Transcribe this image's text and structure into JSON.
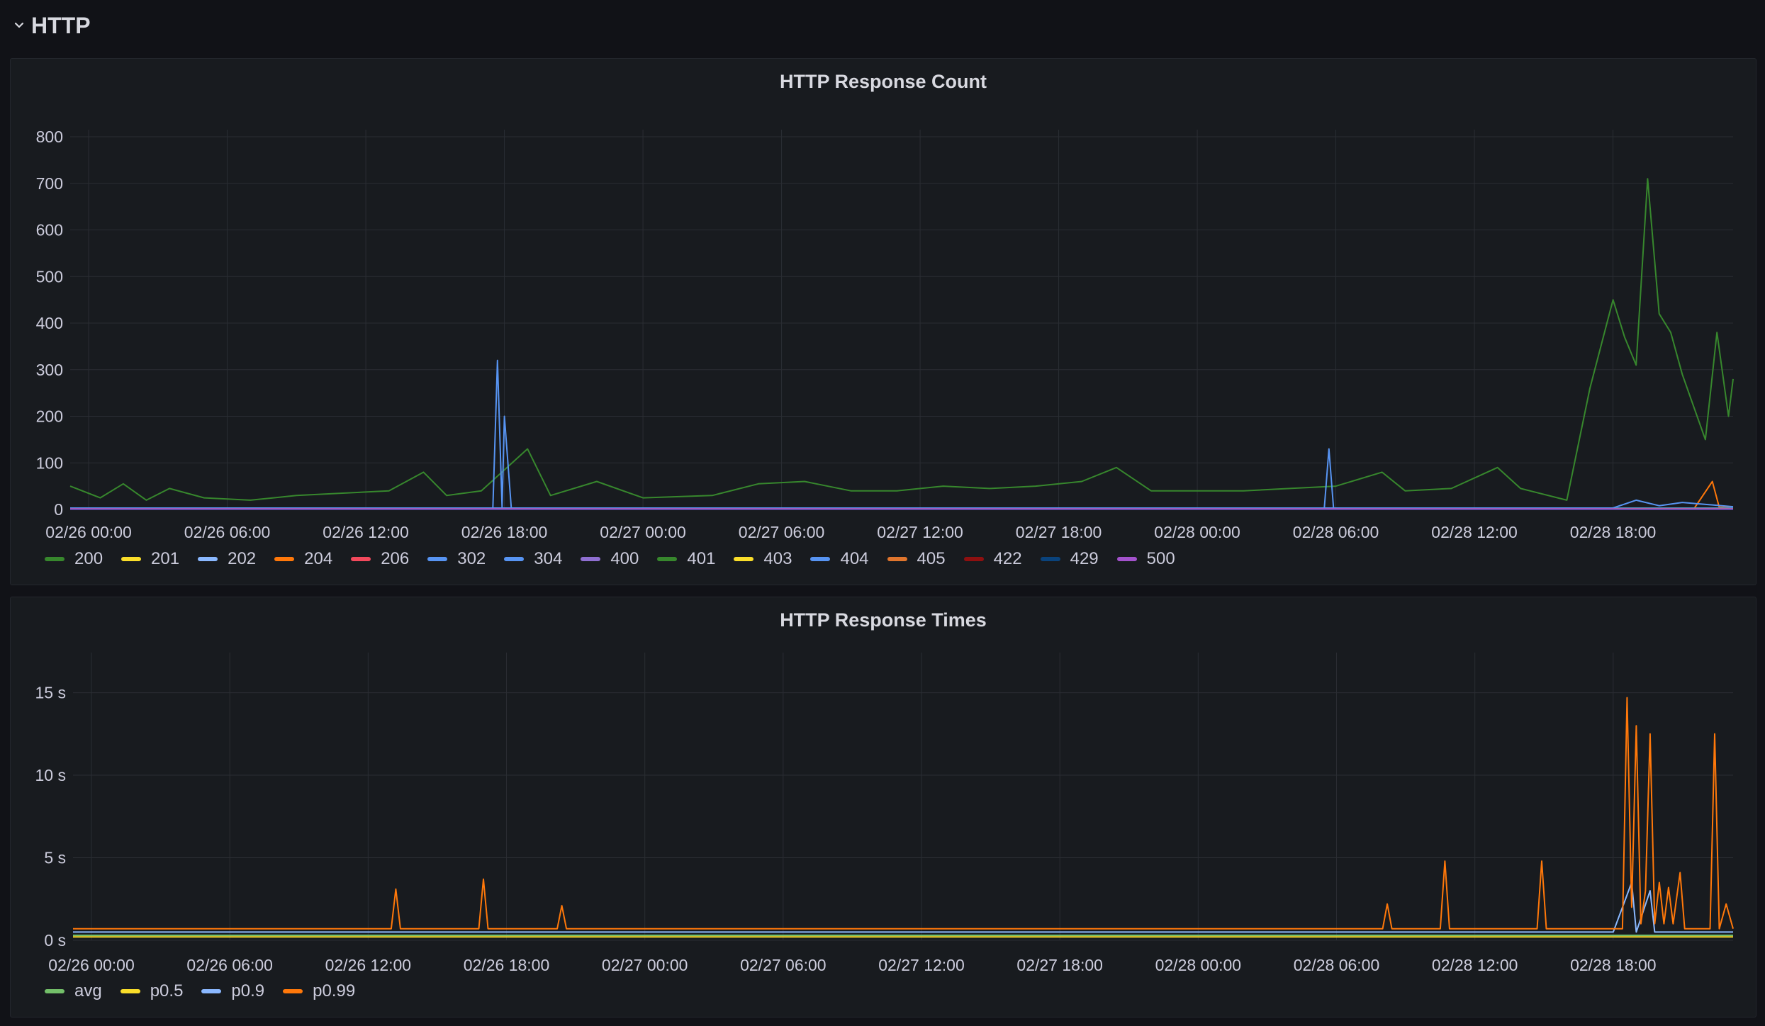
{
  "row": {
    "title": "HTTP"
  },
  "chart_data": [
    {
      "type": "line",
      "title": "HTTP Response Count",
      "ylim": [
        0,
        800
      ],
      "yticks": [
        "0",
        "100",
        "200",
        "300",
        "400",
        "500",
        "600",
        "700",
        "800"
      ],
      "xticks": [
        "02/26 00:00",
        "02/26 06:00",
        "02/26 12:00",
        "02/26 18:00",
        "02/27 00:00",
        "02/27 06:00",
        "02/27 12:00",
        "02/27 18:00",
        "02/28 00:00",
        "02/28 06:00",
        "02/28 12:00",
        "02/28 18:00"
      ],
      "x_hours_start": -0.8,
      "x_hours_end": 71.2,
      "legend_placement": "bottom-left",
      "series": [
        {
          "name": "200",
          "color": "#37872d",
          "points": [
            [
              -0.8,
              50
            ],
            [
              0.5,
              25
            ],
            [
              1.5,
              55
            ],
            [
              2.5,
              20
            ],
            [
              3.5,
              45
            ],
            [
              5,
              25
            ],
            [
              7,
              20
            ],
            [
              9,
              30
            ],
            [
              11,
              35
            ],
            [
              13,
              40
            ],
            [
              14.5,
              80
            ],
            [
              15.5,
              30
            ],
            [
              17,
              40
            ],
            [
              19,
              130
            ],
            [
              20,
              30
            ],
            [
              22,
              60
            ],
            [
              24,
              25
            ],
            [
              27,
              30
            ],
            [
              29,
              55
            ],
            [
              31,
              60
            ],
            [
              33,
              40
            ],
            [
              35,
              40
            ],
            [
              37,
              50
            ],
            [
              39,
              45
            ],
            [
              41,
              50
            ],
            [
              43,
              60
            ],
            [
              44.5,
              90
            ],
            [
              46,
              40
            ],
            [
              48,
              40
            ],
            [
              50,
              40
            ],
            [
              52,
              45
            ],
            [
              54,
              50
            ],
            [
              56,
              80
            ],
            [
              57,
              40
            ],
            [
              59,
              45
            ],
            [
              61,
              90
            ],
            [
              62,
              45
            ],
            [
              64,
              20
            ],
            [
              65,
              260
            ],
            [
              66,
              450
            ],
            [
              66.5,
              370
            ],
            [
              67,
              310
            ],
            [
              67.5,
              710
            ],
            [
              68,
              420
            ],
            [
              68.5,
              380
            ],
            [
              69,
              290
            ],
            [
              69.5,
              220
            ],
            [
              70,
              150
            ],
            [
              70.5,
              380
            ],
            [
              71,
              200
            ],
            [
              71.2,
              280
            ]
          ]
        },
        {
          "name": "201",
          "color": "#fade2a",
          "points": [
            [
              -0.8,
              2
            ],
            [
              71.2,
              2
            ]
          ]
        },
        {
          "name": "202",
          "color": "#8ab8ff",
          "points": [
            [
              -0.8,
              3
            ],
            [
              71.2,
              3
            ]
          ]
        },
        {
          "name": "204",
          "color": "#ff780a",
          "points": [
            [
              -0.8,
              1
            ],
            [
              69.5,
              1
            ],
            [
              70.3,
              60
            ],
            [
              70.6,
              5
            ],
            [
              71.2,
              3
            ]
          ]
        },
        {
          "name": "206",
          "color": "#f2495c",
          "points": [
            [
              -0.8,
              1
            ],
            [
              71.2,
              1
            ]
          ]
        },
        {
          "name": "302",
          "color": "#5794f2",
          "points": [
            [
              -0.8,
              1
            ],
            [
              71.2,
              1
            ]
          ]
        },
        {
          "name": "304",
          "color": "#5794f2",
          "points": [
            [
              -0.8,
              2
            ],
            [
              17.5,
              2
            ],
            [
              17.7,
              320
            ],
            [
              17.9,
              5
            ],
            [
              18.0,
              200
            ],
            [
              18.3,
              3
            ],
            [
              53.5,
              3
            ],
            [
              53.7,
              130
            ],
            [
              53.9,
              3
            ],
            [
              71.2,
              3
            ]
          ]
        },
        {
          "name": "400",
          "color": "#8f6fd1",
          "points": [
            [
              -0.8,
              1
            ],
            [
              71.2,
              1
            ]
          ]
        },
        {
          "name": "401",
          "color": "#37872d",
          "points": [
            [
              -0.8,
              2
            ],
            [
              71.2,
              2
            ]
          ]
        },
        {
          "name": "403",
          "color": "#fade2a",
          "points": [
            [
              -0.8,
              1
            ],
            [
              71.2,
              1
            ]
          ]
        },
        {
          "name": "404",
          "color": "#5794f2",
          "points": [
            [
              -0.8,
              3
            ],
            [
              66,
              3
            ],
            [
              67,
              20
            ],
            [
              68,
              8
            ],
            [
              69,
              15
            ],
            [
              71.2,
              6
            ]
          ]
        },
        {
          "name": "405",
          "color": "#e0752d",
          "points": [
            [
              -0.8,
              1
            ],
            [
              71.2,
              1
            ]
          ]
        },
        {
          "name": "422",
          "color": "#8e1010",
          "points": [
            [
              -0.8,
              0
            ],
            [
              71.2,
              0
            ]
          ]
        },
        {
          "name": "429",
          "color": "#0a437c",
          "points": [
            [
              -0.8,
              0
            ],
            [
              71.2,
              0
            ]
          ]
        },
        {
          "name": "500",
          "color": "#a352cc",
          "points": [
            [
              -0.8,
              1
            ],
            [
              71.2,
              1
            ]
          ]
        }
      ]
    },
    {
      "type": "line",
      "title": "HTTP Response Times",
      "ylim": [
        0,
        17
      ],
      "yticks": [
        "0 s",
        "5 s",
        "10 s",
        "15 s"
      ],
      "xticks": [
        "02/26 00:00",
        "02/26 06:00",
        "02/26 12:00",
        "02/26 18:00",
        "02/27 00:00",
        "02/27 06:00",
        "02/27 12:00",
        "02/27 18:00",
        "02/28 00:00",
        "02/28 06:00",
        "02/28 12:00",
        "02/28 18:00"
      ],
      "x_hours_start": -0.8,
      "x_hours_end": 71.2,
      "legend_placement": "bottom-left",
      "series": [
        {
          "name": "avg",
          "color": "#73bf69",
          "points": [
            [
              -0.8,
              0.3
            ],
            [
              71.2,
              0.3
            ]
          ]
        },
        {
          "name": "p0.5",
          "color": "#fade2a",
          "points": [
            [
              -0.8,
              0.2
            ],
            [
              71.2,
              0.2
            ]
          ]
        },
        {
          "name": "p0.9",
          "color": "#8ab8ff",
          "points": [
            [
              -0.8,
              0.5
            ],
            [
              66,
              0.5
            ],
            [
              66.8,
              3.5
            ],
            [
              67,
              0.5
            ],
            [
              67.6,
              3
            ],
            [
              67.8,
              0.5
            ],
            [
              71.2,
              0.5
            ]
          ]
        },
        {
          "name": "p0.99",
          "color": "#ff780a",
          "points": [
            [
              -0.8,
              0.7
            ],
            [
              13,
              0.7
            ],
            [
              13.2,
              3.1
            ],
            [
              13.4,
              0.7
            ],
            [
              16.8,
              0.7
            ],
            [
              17,
              3.7
            ],
            [
              17.2,
              0.7
            ],
            [
              20.2,
              0.7
            ],
            [
              20.4,
              2.1
            ],
            [
              20.6,
              0.7
            ],
            [
              56,
              0.7
            ],
            [
              56.2,
              2.2
            ],
            [
              56.4,
              0.7
            ],
            [
              58.5,
              0.7
            ],
            [
              58.7,
              4.8
            ],
            [
              58.9,
              0.7
            ],
            [
              62.7,
              0.7
            ],
            [
              62.9,
              4.8
            ],
            [
              63.1,
              0.7
            ],
            [
              66.4,
              0.7
            ],
            [
              66.6,
              14.7
            ],
            [
              66.8,
              2
            ],
            [
              67,
              13
            ],
            [
              67.2,
              1
            ],
            [
              67.4,
              3
            ],
            [
              67.6,
              12.5
            ],
            [
              67.8,
              1
            ],
            [
              68,
              3.5
            ],
            [
              68.2,
              1
            ],
            [
              68.4,
              3.2
            ],
            [
              68.6,
              1
            ],
            [
              68.9,
              4.1
            ],
            [
              69.1,
              0.7
            ],
            [
              70.2,
              0.7
            ],
            [
              70.4,
              12.5
            ],
            [
              70.6,
              0.7
            ],
            [
              70.9,
              2.2
            ],
            [
              71.2,
              0.7
            ]
          ]
        }
      ]
    }
  ]
}
